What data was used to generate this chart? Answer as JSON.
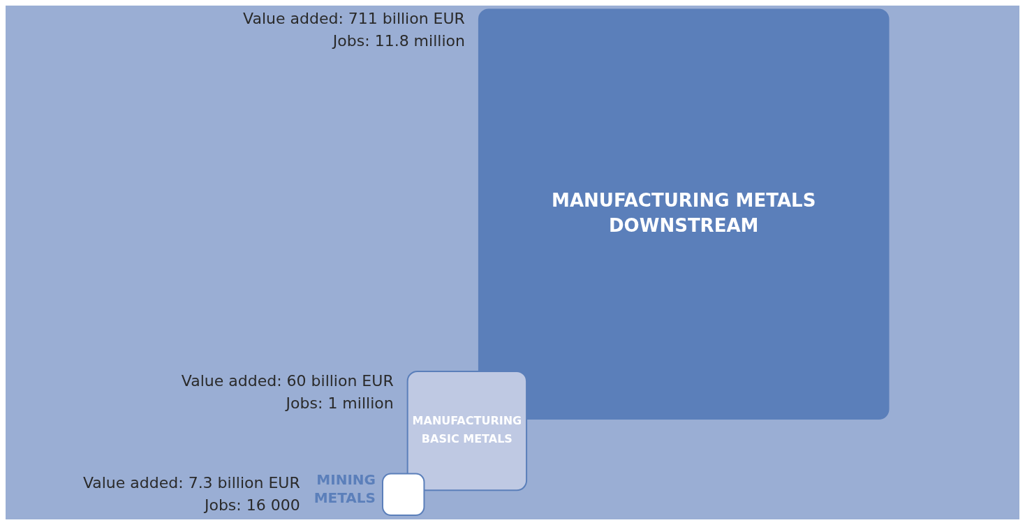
{
  "chart_data": {
    "type": "other",
    "categories": [
      "MINING METALS",
      "MANUFACTURING BASIC METALS",
      "MANUFACTURING METALS DOWNSTREAM"
    ],
    "series": [
      {
        "values": [
          7.3,
          60,
          711
        ],
        "colors": [
          "#ffffff",
          "#bfc9e3",
          "#5b7fba"
        ],
        "value_labels": [
          "Value added: 7.3 billion EUR",
          "Value added: 60 billion EUR",
          "Value added: 711 billion EUR"
        ]
      }
    ],
    "annotations": [
      "Jobs: 16 000",
      "Jobs: 1 million",
      "Jobs: 11.8 million"
    ]
  }
}
